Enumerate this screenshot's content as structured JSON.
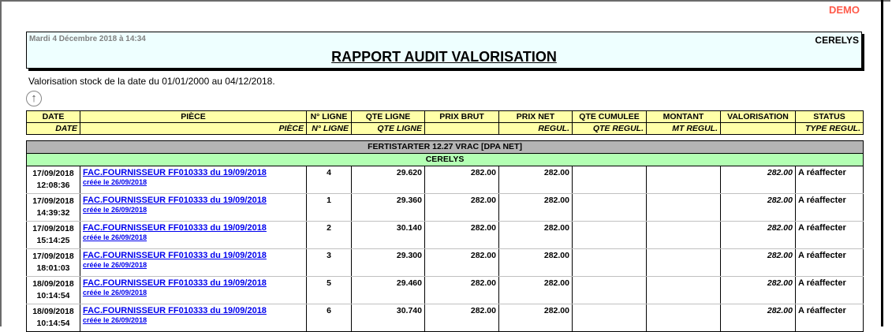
{
  "demo_label": "DEMO",
  "header": {
    "date": "Mardi 4 Décembre 2018 à 14:34",
    "company": "CERELYS",
    "title": "RAPPORT AUDIT VALORISATION"
  },
  "subtitle": "Valorisation stock de la date du 01/01/2000 au 04/12/2018.",
  "icons": {
    "up": "arrow-up-circle-icon"
  },
  "colors": {
    "header_bg": "#eeffff",
    "col_header_bg": "#ffffa8",
    "group_bg": "#b4b4b4",
    "subgroup_bg": "#b3ffb3",
    "demo": "#ff5a4a",
    "link": "#0000ee"
  },
  "columns": {
    "top": [
      "DATE",
      "PIÈCE",
      "N° LIGNE",
      "QTE LIGNE",
      "PRIX BRUT",
      "PRIX NET",
      "QTE CUMULEE",
      "MONTANT",
      "VALORISATION",
      "STATUS"
    ],
    "bottom": [
      "DATE",
      "PIÈCE",
      "N° LIGNE",
      "QTE LIGNE",
      "",
      "REGUL.",
      "QTE REGUL.",
      "MT REGUL.",
      "",
      "TYPE REGUL."
    ]
  },
  "group": "FERTISTARTER 12.27 VRAC [DPA NET]",
  "subgroup": "CERELYS",
  "rows": [
    {
      "date": "17/09/2018",
      "time": "12:08:36",
      "piece": "FAC.FOURNISSEUR FF010333 du 19/09/2018",
      "created": "créée le 26/09/2018",
      "ligne": "4",
      "qte": "29.620",
      "brut": "282.00",
      "net": "282.00",
      "cumul": "",
      "montant": "",
      "valo": "282.00",
      "status": "A réaffecter"
    },
    {
      "date": "17/09/2018",
      "time": "14:39:32",
      "piece": "FAC.FOURNISSEUR FF010333 du 19/09/2018",
      "created": "créée le 26/09/2018",
      "ligne": "1",
      "qte": "29.360",
      "brut": "282.00",
      "net": "282.00",
      "cumul": "",
      "montant": "",
      "valo": "282.00",
      "status": "A réaffecter"
    },
    {
      "date": "17/09/2018",
      "time": "15:14:25",
      "piece": "FAC.FOURNISSEUR FF010333 du 19/09/2018",
      "created": "créée le 26/09/2018",
      "ligne": "2",
      "qte": "30.140",
      "brut": "282.00",
      "net": "282.00",
      "cumul": "",
      "montant": "",
      "valo": "282.00",
      "status": "A réaffecter"
    },
    {
      "date": "17/09/2018",
      "time": "18:01:03",
      "piece": "FAC.FOURNISSEUR FF010333 du 19/09/2018",
      "created": "créée le 26/09/2018",
      "ligne": "3",
      "qte": "29.300",
      "brut": "282.00",
      "net": "282.00",
      "cumul": "",
      "montant": "",
      "valo": "282.00",
      "status": "A réaffecter"
    },
    {
      "date": "18/09/2018",
      "time": "10:14:54",
      "piece": "FAC.FOURNISSEUR FF010333 du 19/09/2018",
      "created": "créée le 26/09/2018",
      "ligne": "5",
      "qte": "29.460",
      "brut": "282.00",
      "net": "282.00",
      "cumul": "",
      "montant": "",
      "valo": "282.00",
      "status": "A réaffecter"
    },
    {
      "date": "18/09/2018",
      "time": "10:14:54",
      "piece": "FAC.FOURNISSEUR FF010333 du 19/09/2018",
      "created": "créée le 26/09/2018",
      "ligne": "6",
      "qte": "30.740",
      "brut": "282.00",
      "net": "282.00",
      "cumul": "",
      "montant": "",
      "valo": "282.00",
      "status": "A réaffecter"
    }
  ]
}
